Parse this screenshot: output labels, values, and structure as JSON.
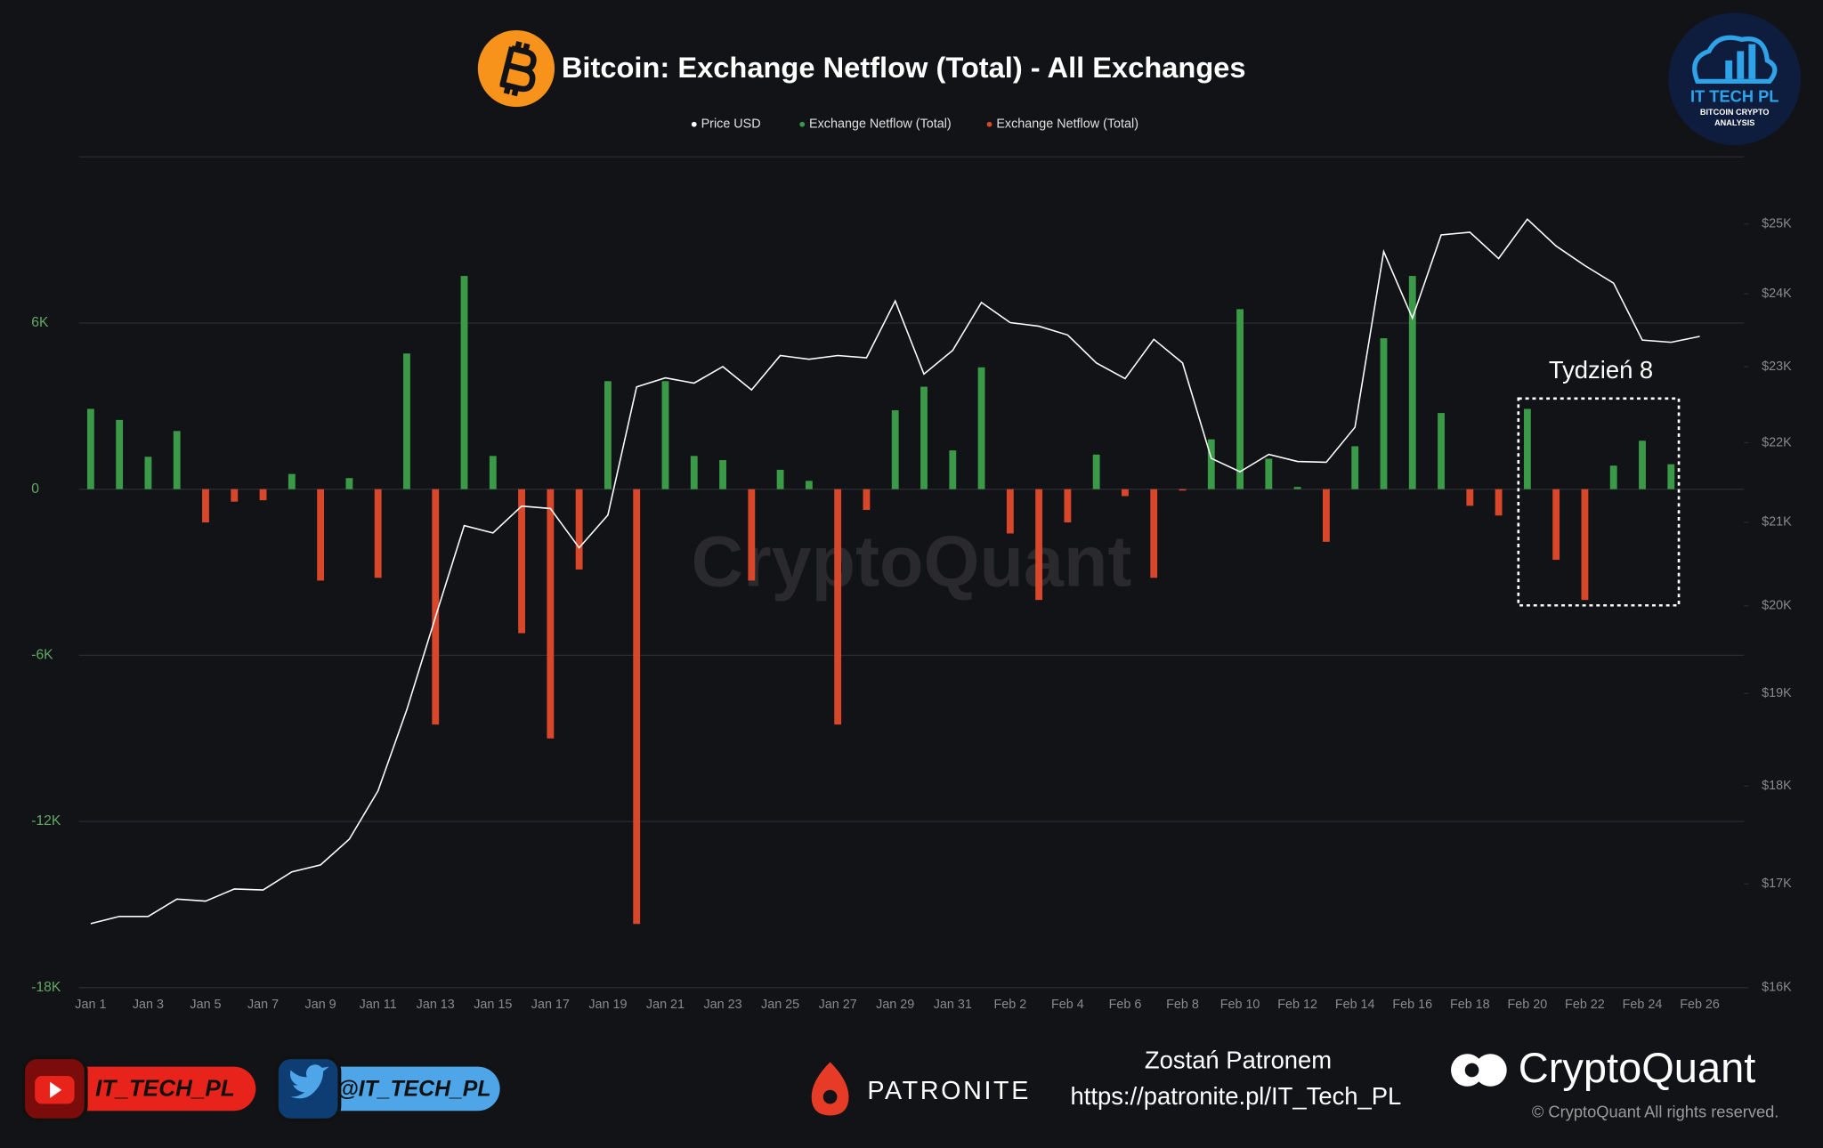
{
  "chart_data": {
    "type": "bar",
    "title": "Bitcoin: Exchange Netflow (Total) - All Exchanges",
    "watermark": "CryptoQuant",
    "annotation": "Tydzień 8",
    "categories": [
      "Jan 1",
      null,
      "Jan 3",
      null,
      "Jan 5",
      null,
      "Jan 7",
      null,
      "Jan 9",
      null,
      "Jan 11",
      null,
      "Jan 13",
      null,
      "Jan 15",
      null,
      "Jan 17",
      null,
      "Jan 19",
      null,
      "Jan 21",
      null,
      "Jan 23",
      null,
      "Jan 25",
      null,
      "Jan 27",
      null,
      "Jan 29",
      null,
      "Jan 31",
      null,
      "Feb 2",
      null,
      "Feb 4",
      null,
      "Feb 6",
      null,
      "Feb 8",
      null,
      "Feb 10",
      null,
      "Feb 12",
      null,
      "Feb 14",
      null,
      "Feb 16",
      null,
      "Feb 18",
      null,
      "Feb 20",
      null,
      "Feb 22",
      null,
      "Feb 24",
      null,
      "Feb 26"
    ],
    "series": [
      {
        "name": "Price USD",
        "type": "line",
        "axis": "y2",
        "color": "#ffffff",
        "values": [
          16610,
          16680,
          16680,
          16850,
          16830,
          16950,
          16940,
          17120,
          17190,
          17450,
          17950,
          18820,
          19870,
          20960,
          20870,
          21200,
          21170,
          20690,
          21090,
          22730,
          22850,
          22780,
          23000,
          22690,
          23150,
          23100,
          23150,
          23120,
          23900,
          22900,
          23220,
          23880,
          23600,
          23550,
          23430,
          23050,
          22840,
          23370,
          23050,
          21800,
          21630,
          21850,
          21760,
          21750,
          22200,
          24600,
          23660,
          24840,
          24880,
          24500,
          25070,
          24680,
          24400,
          24150,
          23360,
          23330,
          23410
        ]
      },
      {
        "name": "Exchange Netflow (Total)",
        "color": "#3a9a48",
        "values": [
          2900,
          2500,
          1170,
          2100,
          null,
          null,
          null,
          550,
          null,
          400,
          null,
          4900,
          null,
          7700,
          1200,
          null,
          null,
          null,
          3900,
          null,
          3900,
          1200,
          1050,
          null,
          700,
          300,
          null,
          null,
          2850,
          3700,
          1400,
          4400,
          null,
          null,
          null,
          1250,
          null,
          null,
          null,
          1800,
          6500,
          1100,
          80,
          null,
          1550,
          5450,
          7700,
          2750,
          null,
          null,
          2900,
          null,
          null,
          850,
          1750,
          900,
          null
        ]
      },
      {
        "name": "Exchange Netflow (Total)",
        "color": "#d9472b",
        "values": [
          null,
          null,
          null,
          null,
          -1200,
          -450,
          -400,
          null,
          -3300,
          null,
          -3200,
          null,
          -8500,
          null,
          null,
          -5200,
          -9000,
          -2900,
          null,
          -15700,
          null,
          null,
          null,
          -3300,
          null,
          null,
          -8500,
          -750,
          null,
          null,
          null,
          null,
          -1600,
          -4000,
          -1200,
          null,
          -250,
          -3200,
          -50,
          null,
          null,
          null,
          null,
          -1900,
          null,
          null,
          null,
          null,
          -600,
          -950,
          null,
          -2550,
          -4000,
          null,
          null,
          null,
          null
        ]
      }
    ],
    "ylim": [
      -18000,
      12000
    ],
    "yticks": [
      {
        "value": -18000,
        "label": "-18K"
      },
      {
        "value": -12000,
        "label": "-12K"
      },
      {
        "value": -6000,
        "label": "-6K"
      },
      0,
      {
        "value": 6000,
        "label": "6K"
      }
    ],
    "y2lim": [
      16000,
      26000
    ],
    "y2scale": "log",
    "y2ticks": [
      {
        "value": 16000,
        "label": "$16K"
      },
      {
        "value": 17000,
        "label": "$17K"
      },
      {
        "value": 18000,
        "label": "$18K"
      },
      {
        "value": 19000,
        "label": "$19K"
      },
      {
        "value": 20000,
        "label": "$20K"
      },
      {
        "value": 21000,
        "label": "$21K"
      },
      {
        "value": 22000,
        "label": "$22K"
      },
      {
        "value": 23000,
        "label": "$23K"
      },
      {
        "value": 24000,
        "label": "$24K"
      },
      {
        "value": 25000,
        "label": "$25K"
      }
    ],
    "grid": true,
    "legend": "top"
  },
  "logo": {
    "name": "IT TECH PL",
    "tagline_1": "BITCOIN CRYPTO",
    "tagline_2": "ANALYSIS"
  },
  "footer": {
    "youtube": "IT_TECH_PL",
    "twitter": "@IT_TECH_PL",
    "patronite": "PATRONITE",
    "patron_call": "Zostań Patronem",
    "patron_url": "https://patronite.pl/IT_Tech_PL",
    "brand": "CryptoQuant",
    "copyright": "© CryptoQuant All rights reserved."
  }
}
